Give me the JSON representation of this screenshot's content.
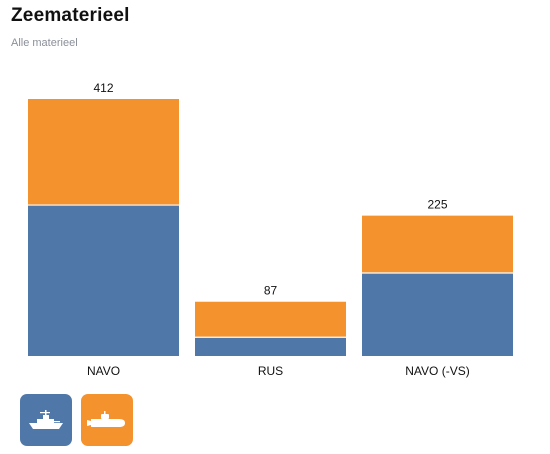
{
  "header": {
    "title": "Zeematerieel",
    "subtitle": "Alle materieel"
  },
  "colors": {
    "surface": "#4f78a8",
    "submarine": "#f4922e",
    "divider": "#ffffff"
  },
  "legend": [
    {
      "icon": "warship-icon",
      "color": "#4f78a8"
    },
    {
      "icon": "submarine-icon",
      "color": "#f4922e"
    }
  ],
  "chart_data": {
    "type": "bar",
    "stacked": true,
    "categories": [
      "NAVO",
      "RUS",
      "NAVO (-VS)"
    ],
    "series": [
      {
        "values": [
          242,
          30,
          133
        ],
        "color": "#4f78a8"
      },
      {
        "values": [
          170,
          57,
          92
        ],
        "color": "#f4922e"
      }
    ],
    "totals": [
      "412",
      "87",
      "225"
    ],
    "ylim": [
      0,
      412
    ],
    "grid": false,
    "legend": "bottom-left"
  }
}
